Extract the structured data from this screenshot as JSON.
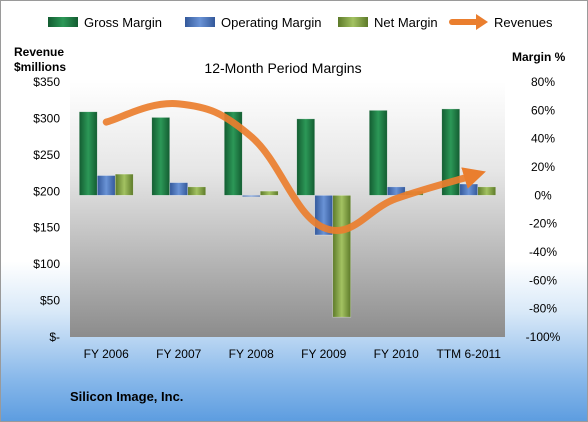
{
  "chart_data": {
    "type": "bar",
    "title": "12-Month Period Margins",
    "ylabel_left": "Revenue\n$millions",
    "ylabel_right": "Margin %",
    "company": "Silicon Image, Inc.",
    "categories": [
      "FY 2006",
      "FY 2007",
      "FY 2008",
      "FY 2009",
      "FY 2010",
      "TTM 6-2011"
    ],
    "left_axis": {
      "min": 0,
      "max": 350,
      "ticks": [
        0,
        50,
        100,
        150,
        200,
        250,
        300,
        350
      ],
      "tick_labels": [
        "$-",
        "$50",
        "$100",
        "$150",
        "$200",
        "$250",
        "$300",
        "$350"
      ]
    },
    "right_axis": {
      "min": -100,
      "max": 80,
      "ticks": [
        -100,
        -80,
        -60,
        -40,
        -20,
        0,
        20,
        40,
        60,
        80
      ],
      "tick_labels": [
        "-100%",
        "-80%",
        "-60%",
        "-40%",
        "-20%",
        "0%",
        "20%",
        "40%",
        "60%",
        "80%"
      ]
    },
    "series": [
      {
        "name": "Gross Margin",
        "type": "bar",
        "axis": "right",
        "color": "#1e7c46",
        "values": [
          59,
          55,
          59,
          54,
          60,
          61
        ]
      },
      {
        "name": "Operating Margin",
        "type": "bar",
        "axis": "right",
        "color": "#4f78c0",
        "values": [
          14,
          9,
          -1,
          -28,
          6,
          8
        ]
      },
      {
        "name": "Net Margin",
        "type": "bar",
        "axis": "right",
        "color": "#7f9f40",
        "values": [
          15,
          6,
          3,
          -86,
          3,
          6
        ]
      },
      {
        "name": "Revenues",
        "type": "line",
        "axis": "left",
        "color": "#ea7e2e",
        "values": [
          295,
          320,
          275,
          150,
          190,
          220
        ]
      }
    ],
    "legend_position": "top",
    "grid": false
  }
}
